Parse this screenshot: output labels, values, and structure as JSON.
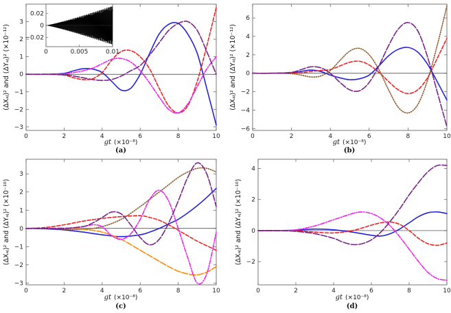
{
  "chart_data": [
    {
      "type": "line",
      "panel_label": "(a)",
      "xlabel_var": "gt",
      "xlabel_unit": "(×10⁻⁸)",
      "ylabel": "(ΔXₐⱼ)² and (ΔYₐⱼ)² (×10⁻¹²)",
      "xlim": [
        0,
        10
      ],
      "ylim": [
        -3.2,
        4.0
      ],
      "xticks": [
        0,
        2,
        4,
        6,
        8,
        10
      ],
      "yticks": [
        -3,
        -2,
        -1,
        0,
        1,
        2,
        3
      ],
      "series": [
        {
          "color": "#2222dd",
          "style": "solid",
          "x": [
            0,
            1,
            2,
            2.5,
            3,
            3.5,
            4,
            4.5,
            5,
            5.5,
            6,
            6.5,
            7,
            7.5,
            8,
            8.5,
            9,
            9.5,
            10
          ],
          "y": [
            0,
            0,
            0.05,
            0.2,
            0.32,
            0.3,
            0.1,
            -0.4,
            -0.9,
            -0.8,
            0,
            1.2,
            2.3,
            2.85,
            2.9,
            2.3,
            1.2,
            -0.8,
            -2.9
          ]
        },
        {
          "color": "#ee2222",
          "style": "dashed",
          "x": [
            0,
            1,
            2,
            2.5,
            3,
            3.5,
            4,
            4.5,
            5,
            5.5,
            6,
            6.5,
            7,
            7.5,
            8,
            8.5,
            9,
            9.5,
            10
          ],
          "y": [
            0,
            0,
            -0.05,
            -0.2,
            -0.3,
            -0.25,
            0.1,
            0.8,
            1.3,
            1.35,
            1.0,
            0.3,
            -0.8,
            -1.8,
            -2.2,
            -1.8,
            -0.4,
            1.6,
            3.8
          ]
        },
        {
          "color": "#ee22ee",
          "style": "dotdash",
          "x": [
            0,
            1,
            2,
            2.5,
            3,
            3.5,
            4,
            4.5,
            5,
            5.5,
            6,
            6.5,
            7,
            7.5,
            8,
            8.5,
            9,
            9.5,
            10
          ],
          "y": [
            0,
            0,
            0.03,
            0.1,
            0.2,
            0.35,
            0.6,
            0.85,
            0.9,
            0.7,
            0.2,
            -0.5,
            -1.3,
            -2.0,
            -2.2,
            -1.7,
            -0.7,
            0.3,
            1.0
          ]
        },
        {
          "color": "#772288",
          "style": "longdash",
          "x": [
            0,
            1,
            2,
            2.5,
            3,
            3.5,
            4,
            4.5,
            5,
            5.5,
            6,
            6.5,
            7,
            7.5,
            8,
            8.5,
            9,
            9.5,
            10
          ],
          "y": [
            0,
            0,
            -0.02,
            -0.1,
            -0.2,
            -0.3,
            -0.35,
            -0.3,
            -0.1,
            0.2,
            0.5,
            1.1,
            1.8,
            2.5,
            2.9,
            3.0,
            2.5,
            1.3,
            0.0
          ]
        }
      ],
      "inset": {
        "xlim": [
          0,
          0.01
        ],
        "ylim": [
          -0.035,
          0.035
        ],
        "xticks": [
          0,
          0.005,
          0.01
        ],
        "xtick_labels": [
          "0",
          "0.005",
          "0.01"
        ],
        "yticks": [
          -0.02,
          0,
          0.02
        ],
        "ytick_labels": [
          "-0.02",
          "0",
          "0.02"
        ],
        "color": "#000000",
        "envelope": "oscillation with amplitude growing from 0 to about 0.032 at x = 0.01"
      }
    },
    {
      "type": "line",
      "panel_label": "(b)",
      "xlabel_var": "gt",
      "xlabel_unit": "(×10⁻⁸)",
      "ylabel": "(ΔXₐⱼ)² and (ΔYₐⱼ)² (×10⁻¹²)",
      "xlim": [
        0,
        10
      ],
      "ylim": [
        -6.2,
        7.5
      ],
      "xticks": [
        0,
        2,
        4,
        6,
        8,
        10
      ],
      "yticks": [
        -6,
        -4,
        -2,
        0,
        2,
        4,
        6
      ],
      "series": [
        {
          "color": "#2222dd",
          "style": "solid",
          "x": [
            0,
            1,
            2,
            2.5,
            3,
            3.5,
            4,
            4.5,
            5,
            5.5,
            6,
            6.5,
            7,
            7.5,
            8,
            8.5,
            9,
            9.5,
            10
          ],
          "y": [
            0,
            0,
            0.05,
            0.2,
            0.35,
            0.2,
            -0.2,
            -0.5,
            -0.7,
            -0.6,
            -0.2,
            0.8,
            1.9,
            2.6,
            2.8,
            2.3,
            1.0,
            -0.9,
            -2.9
          ]
        },
        {
          "color": "#ee2222",
          "style": "dashed",
          "x": [
            0,
            1,
            2,
            2.5,
            3,
            3.5,
            4,
            4.5,
            5,
            5.5,
            6,
            6.5,
            7,
            7.5,
            8,
            8.5,
            9,
            9.5,
            10
          ],
          "y": [
            0,
            0,
            0.02,
            0.05,
            0.2,
            0.3,
            0.4,
            0.8,
            1.2,
            1.3,
            0.9,
            0.1,
            -0.9,
            -1.8,
            -2.2,
            -1.8,
            -0.5,
            1.6,
            3.8
          ]
        },
        {
          "color": "#8b5a2b",
          "style": "dotted",
          "x": [
            0,
            1,
            2,
            2.5,
            3,
            3.5,
            4,
            4.5,
            5,
            5.5,
            6,
            6.5,
            7,
            7.5,
            8,
            8.5,
            9,
            9.5,
            10
          ],
          "y": [
            0,
            0,
            -0.05,
            -0.2,
            -0.4,
            -0.3,
            0.3,
            1.4,
            2.4,
            2.7,
            2.0,
            0.4,
            -1.8,
            -3.7,
            -4.3,
            -3.4,
            -0.8,
            3.0,
            7.3
          ]
        },
        {
          "color": "#772288",
          "style": "longdash",
          "x": [
            0,
            1,
            2,
            2.5,
            3,
            3.5,
            4,
            4.5,
            5,
            5.5,
            6,
            6.5,
            7,
            7.5,
            8,
            8.5,
            9,
            9.5,
            10
          ],
          "y": [
            0,
            0,
            0.1,
            0.4,
            0.7,
            0.6,
            0.0,
            -1.0,
            -1.8,
            -1.9,
            -1.0,
            0.8,
            3.0,
            4.8,
            5.5,
            4.6,
            1.8,
            -2.0,
            -5.8
          ]
        }
      ]
    },
    {
      "type": "line",
      "panel_label": "(c)",
      "xlabel_var": "gt",
      "xlabel_unit": "(×10⁻⁸)",
      "ylabel": "(ΔXₐⱼ)² and (ΔYₐⱼ)² (×10⁻¹⁰)",
      "xlim": [
        0,
        10
      ],
      "ylim": [
        -3.1,
        3.8
      ],
      "xticks": [
        0,
        2,
        4,
        6,
        8,
        10
      ],
      "yticks": [
        -3,
        -2,
        -1,
        0,
        1,
        2,
        3
      ],
      "series": [
        {
          "color": "#2222dd",
          "style": "solid",
          "x": [
            0,
            1,
            2,
            3,
            4,
            5,
            6,
            6.5,
            7,
            7.5,
            8,
            8.5,
            9,
            9.5,
            10
          ],
          "y": [
            0,
            -0.02,
            -0.08,
            -0.2,
            -0.35,
            -0.45,
            -0.35,
            -0.2,
            0,
            0.25,
            0.5,
            0.85,
            1.25,
            1.7,
            2.2
          ]
        },
        {
          "color": "#ee2222",
          "style": "dashed",
          "x": [
            0,
            1,
            2,
            3,
            4,
            5,
            6,
            6.5,
            7,
            7.5,
            8,
            8.5,
            9,
            9.5,
            10
          ],
          "y": [
            0,
            0.05,
            0.2,
            0.4,
            0.55,
            0.65,
            0.7,
            0.6,
            0.45,
            0.2,
            -0.1,
            -0.4,
            -0.7,
            -0.95,
            -1.2
          ]
        },
        {
          "color": "#8b5a2b",
          "style": "dotted",
          "x": [
            0,
            1,
            2,
            3,
            4,
            5,
            6,
            6.5,
            7,
            7.5,
            8,
            8.5,
            9,
            9.5,
            10
          ],
          "y": [
            0,
            0,
            -0.05,
            -0.05,
            0.1,
            0.5,
            1.2,
            1.6,
            2.0,
            2.4,
            2.8,
            3.1,
            3.3,
            3.3,
            3.1
          ]
        },
        {
          "color": "#ff8800",
          "style": "longdash",
          "x": [
            0,
            1,
            2,
            3,
            4,
            5,
            6,
            6.5,
            7,
            7.5,
            8,
            8.5,
            9,
            9.5,
            10
          ],
          "y": [
            0,
            0,
            0.02,
            -0.05,
            -0.2,
            -0.6,
            -1.2,
            -1.5,
            -1.8,
            -2.1,
            -2.35,
            -2.5,
            -2.55,
            -2.4,
            -2.1
          ]
        },
        {
          "color": "#ee22ee",
          "style": "dotdash",
          "x": [
            0,
            1,
            2,
            3,
            3.5,
            4,
            4.5,
            5,
            5.5,
            6,
            6.5,
            7,
            7.5,
            8,
            8.5,
            9,
            9.5,
            10
          ],
          "y": [
            0,
            0,
            0,
            0.1,
            0.2,
            0.1,
            -0.4,
            -0.6,
            -0.3,
            0.5,
            1.6,
            2.1,
            1.5,
            0.0,
            -1.6,
            -3.0,
            -2.5,
            -0.2
          ]
        },
        {
          "color": "#772288",
          "style": "longdash",
          "x": [
            0,
            1,
            2,
            3,
            3.5,
            4,
            4.5,
            5,
            5.5,
            6,
            6.5,
            7,
            7.5,
            8,
            8.5,
            9,
            9.5,
            10
          ],
          "y": [
            0,
            0,
            0,
            0.1,
            0.3,
            0.6,
            0.9,
            0.8,
            0.2,
            -0.5,
            -0.9,
            -0.6,
            0.3,
            1.5,
            2.8,
            3.6,
            3.0,
            1.2
          ]
        }
      ]
    },
    {
      "type": "line",
      "panel_label": "(d)",
      "xlabel_var": "gt",
      "xlabel_unit": "(×10⁻⁸)",
      "ylabel": "(ΔXₐⱼ)² and (ΔYₐⱼ)² (×10⁻¹⁰)",
      "xlim": [
        0,
        10
      ],
      "ylim": [
        -3.5,
        4.6
      ],
      "xticks": [
        0,
        2,
        4,
        6,
        8,
        10
      ],
      "yticks": [
        -2,
        0,
        2,
        4
      ],
      "series": [
        {
          "color": "#2222dd",
          "style": "solid",
          "x": [
            0,
            1,
            2,
            3,
            4,
            5,
            6,
            6.5,
            7,
            7.5,
            8,
            8.5,
            9,
            9.5,
            10
          ],
          "y": [
            0,
            0,
            0.03,
            0.1,
            0.05,
            -0.1,
            -0.3,
            -0.35,
            -0.2,
            0.1,
            0.5,
            0.9,
            1.15,
            1.2,
            1.1
          ]
        },
        {
          "color": "#ee2222",
          "style": "dashed",
          "x": [
            0,
            1,
            2,
            3,
            4,
            5,
            6,
            6.5,
            7,
            7.5,
            8,
            8.5,
            9,
            9.5,
            10
          ],
          "y": [
            0,
            0,
            -0.02,
            -0.1,
            -0.15,
            0.0,
            0.35,
            0.5,
            0.55,
            0.4,
            0.0,
            -0.5,
            -0.85,
            -0.95,
            -0.8
          ]
        },
        {
          "color": "#ee22ee",
          "style": "dotdash",
          "x": [
            0,
            1,
            2,
            3,
            4,
            5,
            5.5,
            6,
            6.5,
            7,
            7.5,
            8,
            8.5,
            9,
            9.5,
            10
          ],
          "y": [
            0,
            0,
            0.05,
            0.3,
            0.7,
            1.1,
            1.2,
            1.1,
            0.8,
            0.3,
            -0.4,
            -1.2,
            -2.0,
            -2.7,
            -3.1,
            -3.2
          ]
        },
        {
          "color": "#772288",
          "style": "longdash",
          "x": [
            0,
            1,
            2,
            3,
            4,
            4.5,
            5,
            5.5,
            6,
            6.5,
            7,
            7.5,
            8,
            8.5,
            9,
            9.5,
            10
          ],
          "y": [
            0,
            0,
            -0.05,
            -0.2,
            -0.5,
            -0.75,
            -0.9,
            -0.85,
            -0.6,
            -0.1,
            0.6,
            1.4,
            2.3,
            3.1,
            3.8,
            4.2,
            4.2
          ]
        }
      ]
    }
  ]
}
